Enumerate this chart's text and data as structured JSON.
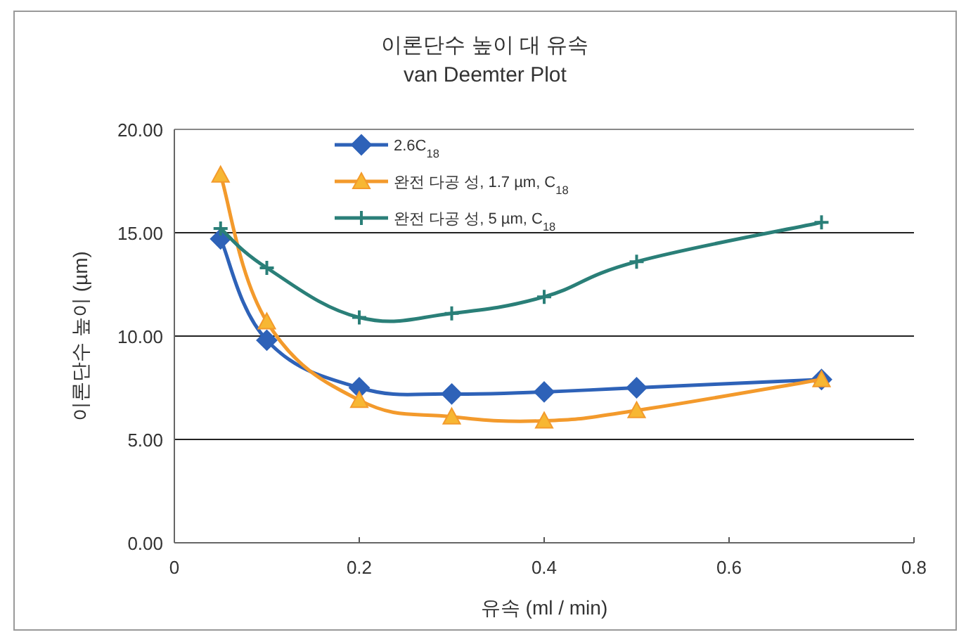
{
  "chart_data": {
    "type": "line",
    "title": "이론단수 높이 대 유속",
    "subtitle": "van Deemter Plot",
    "xlabel": "유속 (ml / min)",
    "ylabel": "이론단수 높이 (µm)",
    "x": [
      0.05,
      0.1,
      0.2,
      0.3,
      0.4,
      0.5,
      0.7
    ],
    "series": [
      {
        "name": "2.6C$_{18}$",
        "color": "#2e62b8",
        "marker": "diamond",
        "values": [
          14.7,
          9.8,
          7.5,
          7.2,
          7.3,
          7.5,
          7.9
        ]
      },
      {
        "name": "완전 다공 성, 1.7 µm, C$_{18}$",
        "color": "#f39a2c",
        "marker": "triangle",
        "values": [
          17.8,
          10.7,
          6.9,
          6.1,
          5.9,
          6.4,
          7.9
        ]
      },
      {
        "name": "완전 다공 성, 5 µm, C$_{18}$",
        "color": "#2a7f78",
        "marker": "cross",
        "values": [
          15.2,
          13.3,
          10.9,
          11.1,
          11.9,
          13.6,
          15.5
        ]
      }
    ],
    "xlim": [
      0,
      0.8
    ],
    "xticks": [
      0,
      0.2,
      0.4,
      0.6,
      0.8
    ],
    "ylim": [
      0,
      20
    ],
    "yticks": [
      {
        "value": 0,
        "label": "0.00"
      },
      {
        "value": 5,
        "label": "5.00"
      },
      {
        "value": 10,
        "label": "10.00"
      },
      {
        "value": 15,
        "label": "15.00"
      },
      {
        "value": 20,
        "label": "20.00"
      }
    ],
    "grid": "y",
    "legend": "top"
  }
}
